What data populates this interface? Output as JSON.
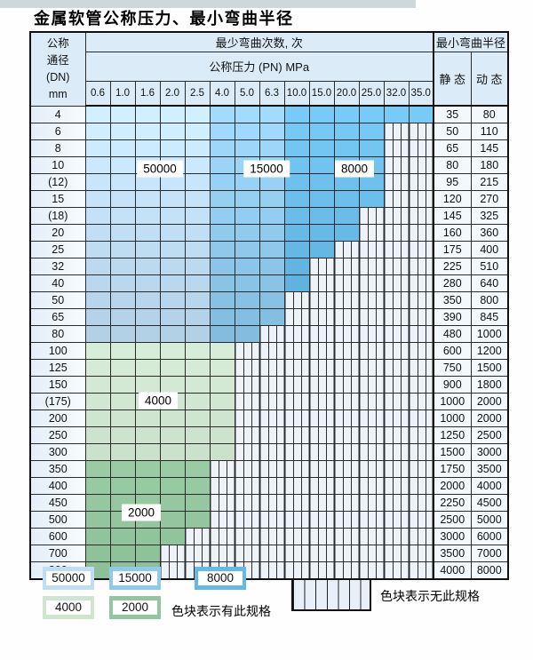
{
  "title": "金属软管公称压力、最小弯曲半径",
  "table": {
    "header": {
      "dn_lines": [
        "公称",
        "通径",
        "(DN)",
        "mm"
      ],
      "bend_cycles": "最少弯曲次数, 次",
      "pressure": "公称压力 (PN) MPa",
      "radius": "最小弯曲半径",
      "static_label": "静 态",
      "dynamic_label": "动 态"
    },
    "pressures": [
      "0.6",
      "1.0",
      "1.6",
      "2.0",
      "2.5",
      "4.0",
      "5.0",
      "6.3",
      "10.0",
      "15.0",
      "20.0",
      "25.0",
      "32.0",
      "35.0"
    ],
    "rows": [
      {
        "dn": "4",
        "last": "35.0",
        "zone": "blue",
        "static": "35",
        "dynamic": "80"
      },
      {
        "dn": "6",
        "last": "25.0",
        "zone": "blue",
        "static": "50",
        "dynamic": "110"
      },
      {
        "dn": "8",
        "last": "25.0",
        "zone": "blue",
        "static": "65",
        "dynamic": "145"
      },
      {
        "dn": "10",
        "last": "25.0",
        "zone": "blue",
        "static": "80",
        "dynamic": "180"
      },
      {
        "dn": "(12)",
        "last": "25.0",
        "zone": "blue",
        "static": "95",
        "dynamic": "215"
      },
      {
        "dn": "15",
        "last": "25.0",
        "zone": "blue",
        "static": "120",
        "dynamic": "270"
      },
      {
        "dn": "(18)",
        "last": "20.0",
        "zone": "blue",
        "static": "145",
        "dynamic": "325"
      },
      {
        "dn": "20",
        "last": "20.0",
        "zone": "blue",
        "static": "160",
        "dynamic": "360"
      },
      {
        "dn": "25",
        "last": "15.0",
        "zone": "blue",
        "static": "175",
        "dynamic": "400"
      },
      {
        "dn": "32",
        "last": "10.0",
        "zone": "blue",
        "static": "225",
        "dynamic": "510"
      },
      {
        "dn": "40",
        "last": "10.0",
        "zone": "blue",
        "static": "280",
        "dynamic": "640"
      },
      {
        "dn": "50",
        "last": "6.3",
        "zone": "blue",
        "static": "350",
        "dynamic": "800"
      },
      {
        "dn": "65",
        "last": "6.3",
        "zone": "blue",
        "static": "390",
        "dynamic": "845"
      },
      {
        "dn": "80",
        "last": "5.0",
        "zone": "blue",
        "static": "480",
        "dynamic": "1000"
      },
      {
        "dn": "100",
        "last": "4.0",
        "zone": "green-light",
        "static": "600",
        "dynamic": "1200"
      },
      {
        "dn": "125",
        "last": "4.0",
        "zone": "green-light",
        "static": "750",
        "dynamic": "1500"
      },
      {
        "dn": "150",
        "last": "4.0",
        "zone": "green-light",
        "static": "900",
        "dynamic": "1800"
      },
      {
        "dn": "(175)",
        "last": "4.0",
        "zone": "green-light",
        "static": "1000",
        "dynamic": "2000"
      },
      {
        "dn": "200",
        "last": "4.0",
        "zone": "green-light",
        "static": "1000",
        "dynamic": "2000"
      },
      {
        "dn": "250",
        "last": "4.0",
        "zone": "green-light",
        "static": "1250",
        "dynamic": "2500"
      },
      {
        "dn": "300",
        "last": "4.0",
        "zone": "green-light",
        "static": "1500",
        "dynamic": "3000"
      },
      {
        "dn": "350",
        "last": "2.5",
        "zone": "green-dark",
        "static": "1750",
        "dynamic": "3500"
      },
      {
        "dn": "400",
        "last": "2.5",
        "zone": "green-dark",
        "static": "2000",
        "dynamic": "4000"
      },
      {
        "dn": "450",
        "last": "2.5",
        "zone": "green-dark",
        "static": "2250",
        "dynamic": "4500"
      },
      {
        "dn": "500",
        "last": "2.5",
        "zone": "green-dark",
        "static": "2500",
        "dynamic": "5000"
      },
      {
        "dn": "600",
        "last": "2.0",
        "zone": "green-dark",
        "static": "3000",
        "dynamic": "6000"
      },
      {
        "dn": "700",
        "last": "1.6",
        "zone": "green-dark",
        "static": "3500",
        "dynamic": "7000"
      },
      {
        "dn": "800",
        "last": "1.6",
        "zone": "green-dark",
        "static": "4000",
        "dynamic": "8000"
      }
    ]
  },
  "zones": {
    "b50000": {
      "label": "50000",
      "color": "#bfdef3"
    },
    "b15000": {
      "label": "15000",
      "color": "#8fcaec"
    },
    "b8000": {
      "label": "8000",
      "color": "#67b9e5"
    },
    "g4000": {
      "label": "4000",
      "color": "#cfe5cf"
    },
    "g2000": {
      "label": "2000",
      "color": "#93c69f"
    }
  },
  "legend": {
    "has_spec": "色块表示有此规格",
    "no_spec": "色块表示无此规格"
  }
}
